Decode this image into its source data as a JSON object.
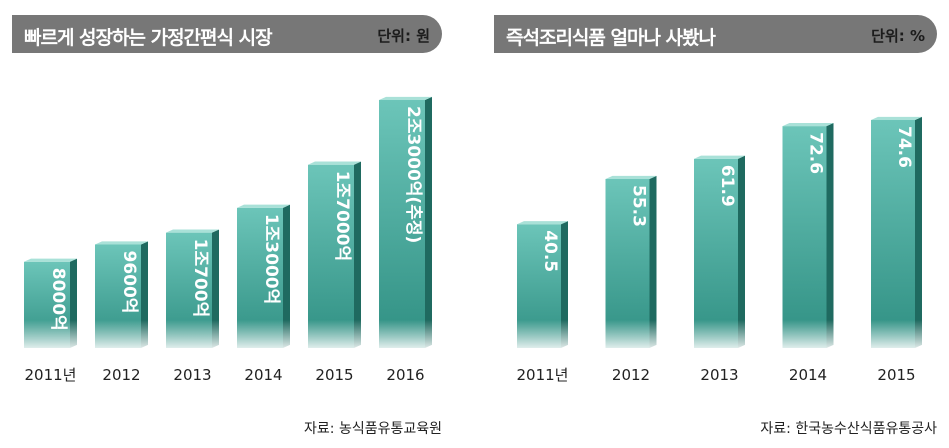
{
  "left": {
    "title": "빠르게 성장하는 가정간편식 시장",
    "unit": "단위: 원",
    "source": "자료: 농식품유통교육원",
    "chart_data": {
      "type": "bar",
      "categories": [
        "2011년",
        "2012",
        "2013",
        "2014",
        "2015",
        "2016"
      ],
      "values": [
        8000,
        9600,
        10700,
        13000,
        17000,
        23000
      ],
      "value_unit": "억원",
      "data_labels": [
        "8000억",
        "9600억",
        "1조700억",
        "1조3000억",
        "1조7000억",
        "2조3000억(추정)"
      ]
    }
  },
  "right": {
    "title": "즉석조리식품 얼마나 사봤나",
    "unit": "단위: %",
    "source": "자료: 한국농수산식품유통공사",
    "chart_data": {
      "type": "bar",
      "categories": [
        "2011년",
        "2012",
        "2013",
        "2014",
        "2015"
      ],
      "values": [
        40.5,
        55.3,
        61.9,
        72.6,
        74.6
      ],
      "data_labels": [
        "40.5",
        "55.3",
        "61.9",
        "72.6",
        "74.6"
      ]
    }
  },
  "colors": {
    "header_bg": "#777777",
    "bar_front_top": "#6cc5b9",
    "bar_front_bottom": "#2f8f82",
    "bar_side": "#1f6a60",
    "bar_top": "#a9e1d8"
  }
}
